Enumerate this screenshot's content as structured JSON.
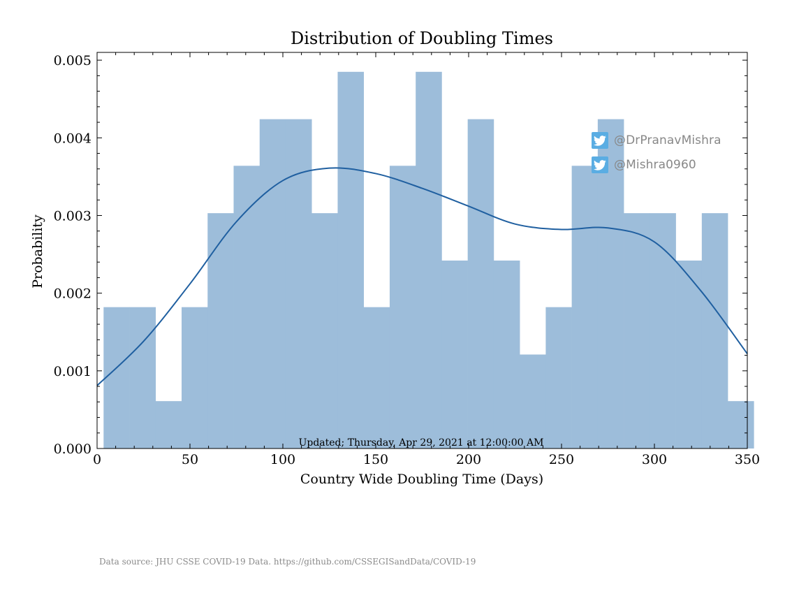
{
  "chart_data": {
    "type": "bar",
    "title": "Distribution of Doubling Times",
    "xlabel": "Country Wide Doubling Time (Days)",
    "ylabel": "Probability",
    "xlim": [
      0,
      350
    ],
    "ylim": [
      0,
      0.0051
    ],
    "xticks": [
      0,
      50,
      100,
      150,
      200,
      250,
      300,
      350
    ],
    "xtick_labels": [
      "0",
      "50",
      "100",
      "150",
      "200",
      "250",
      "300",
      "350"
    ],
    "yticks": [
      0,
      0.001,
      0.002,
      0.003,
      0.004,
      0.005
    ],
    "ytick_labels": [
      "0.000",
      "0.001",
      "0.002",
      "0.003",
      "0.004",
      "0.005"
    ],
    "bin_start": 3.5,
    "bin_width": 14,
    "values": [
      0.00182,
      0.00182,
      0.00061,
      0.00182,
      0.00303,
      0.00364,
      0.00424,
      0.00424,
      0.00303,
      0.00485,
      0.00182,
      0.00364,
      0.00485,
      0.00242,
      0.00424,
      0.00242,
      0.00121,
      0.00182,
      0.00364,
      0.00424,
      0.00303,
      0.00303,
      0.00242,
      0.00303,
      0.00061
    ],
    "kde": {
      "x": [
        0,
        25,
        50,
        75,
        100,
        125,
        150,
        175,
        200,
        225,
        250,
        275,
        300,
        325,
        350
      ],
      "y": [
        0.00081,
        0.00138,
        0.00212,
        0.00292,
        0.00345,
        0.00361,
        0.00354,
        0.00335,
        0.00312,
        0.00289,
        0.00282,
        0.00284,
        0.00266,
        0.00203,
        0.00122
      ]
    },
    "bar_color": "#9dbdda",
    "line_color": "#1f5fa0",
    "annotation": "Updated; Thursday, Apr 29, 2021 at 12:00:00 AM",
    "grid": false
  },
  "watermarks": [
    {
      "icon": "twitter-icon",
      "handle": "@DrPranavMishra"
    },
    {
      "icon": "twitter-icon",
      "handle": "@Mishra0960"
    }
  ],
  "footer": {
    "source": "Data source: JHU CSSE COVID-19 Data. https://github.com/CSSEGISandData/COVID-19"
  }
}
